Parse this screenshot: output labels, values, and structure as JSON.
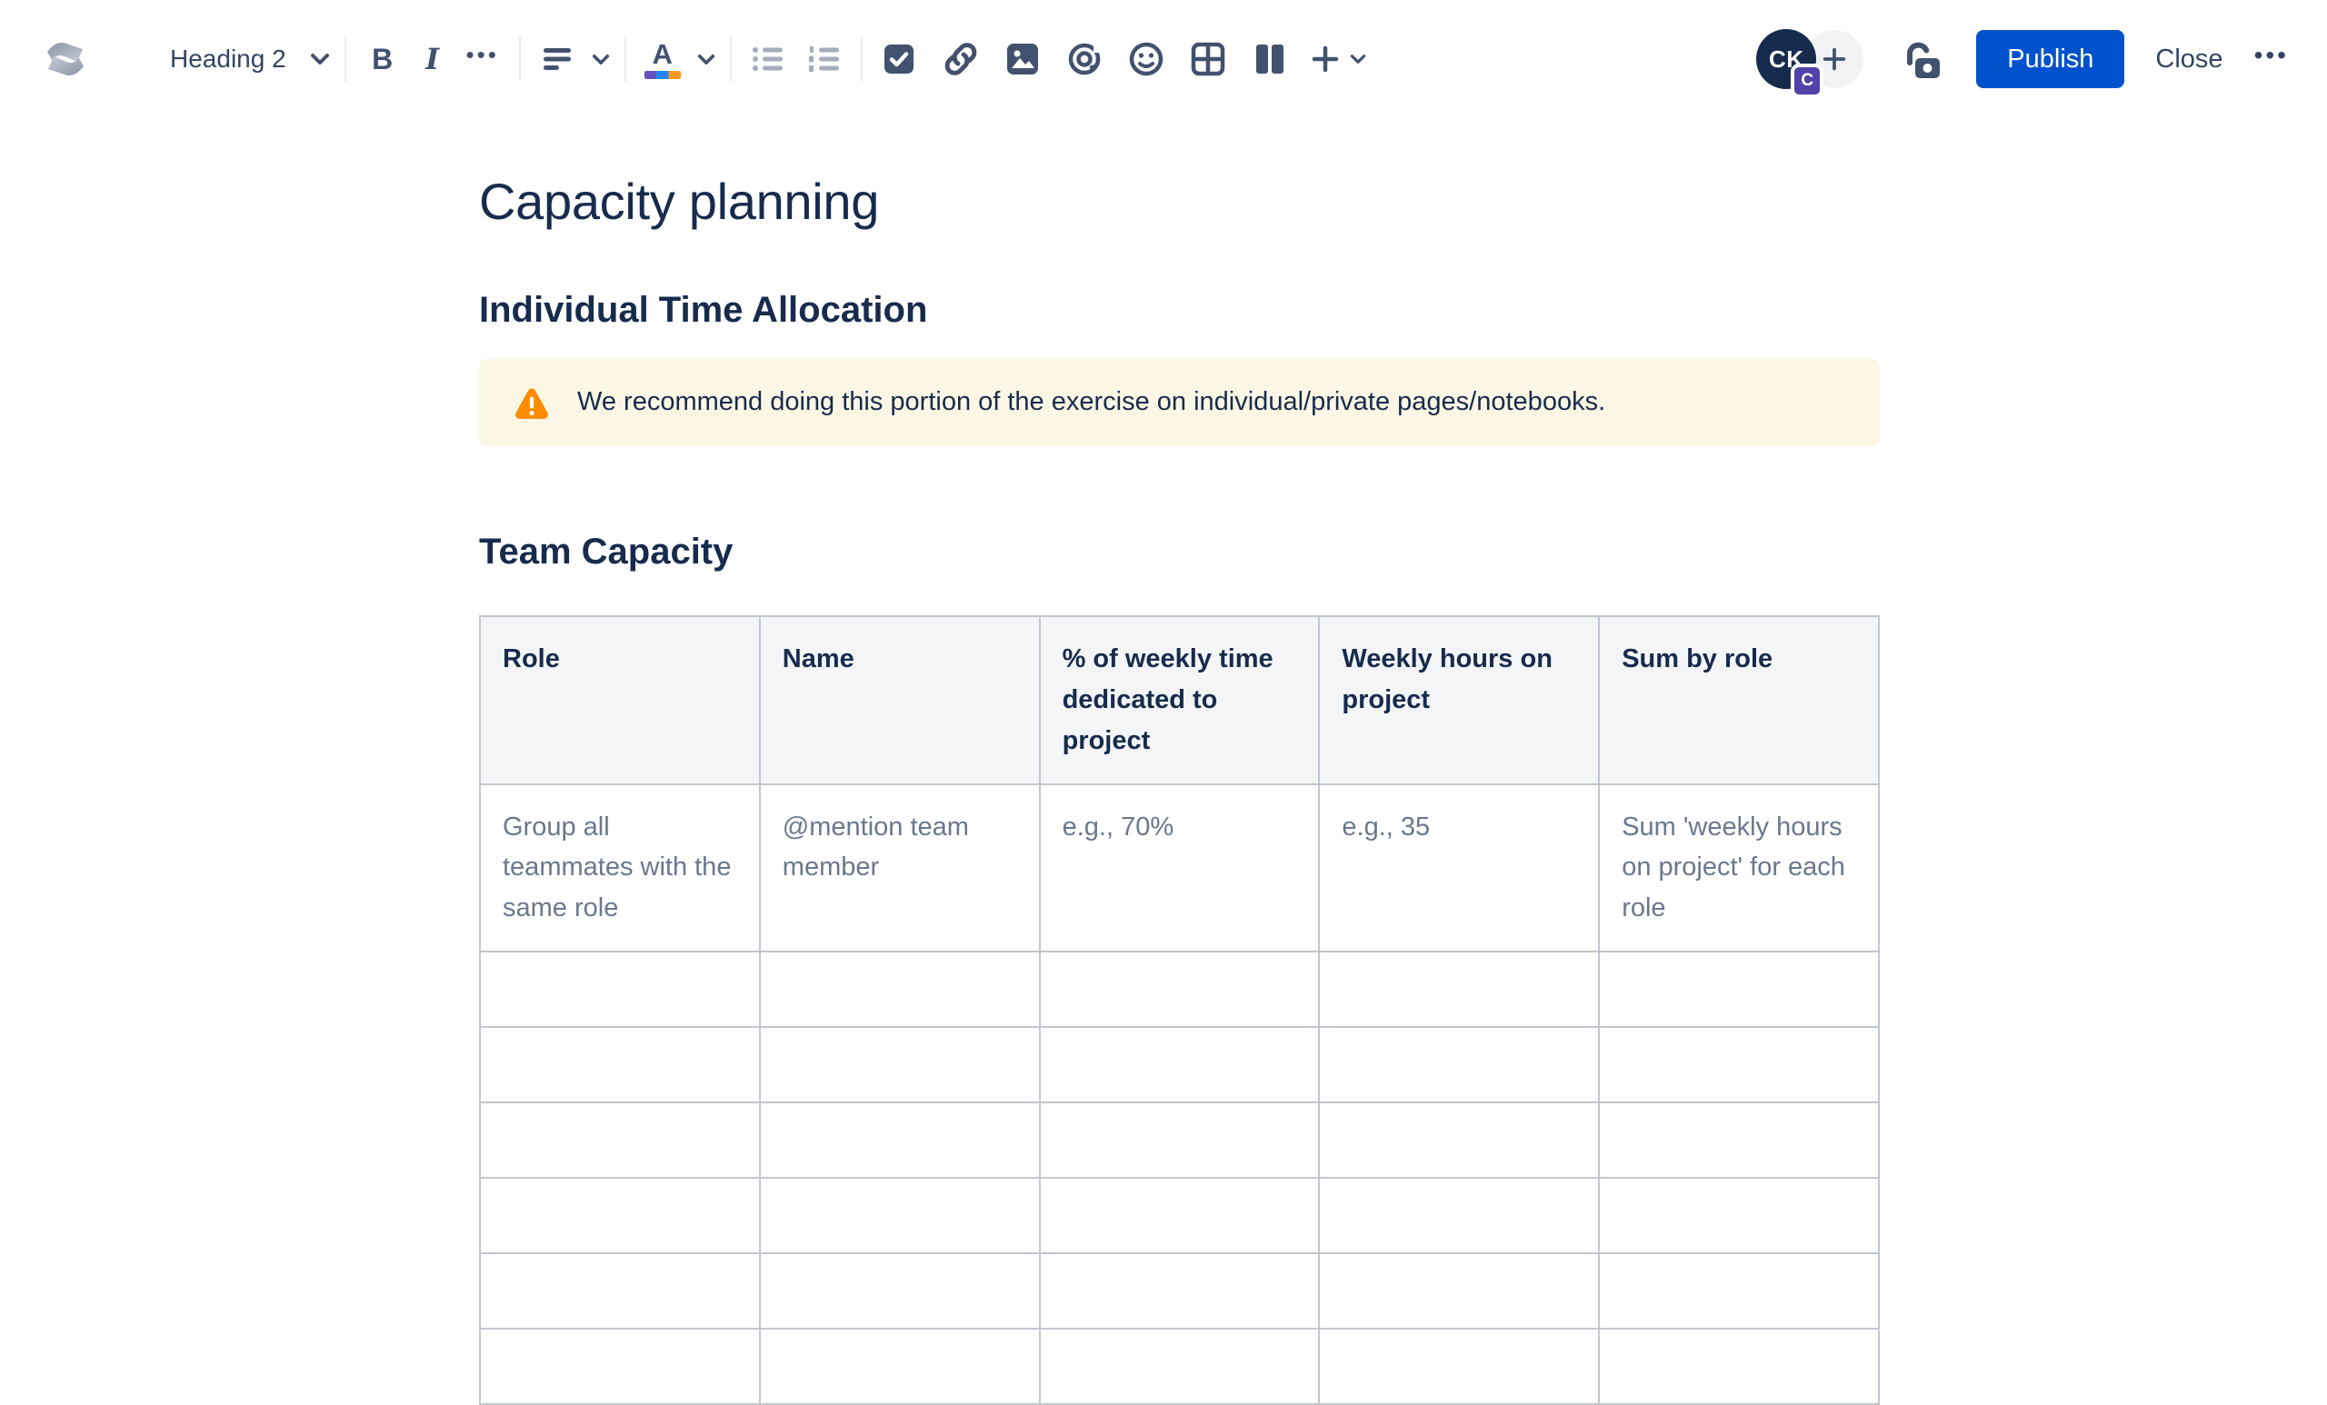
{
  "toolbar": {
    "style_selector": {
      "label": "Heading 2"
    },
    "format": {
      "bold": "B",
      "italic": "I",
      "more": "•••"
    },
    "publish_label": "Publish",
    "close_label": "Close",
    "more_label": "•••",
    "avatar": {
      "initials": "CK",
      "badge": "C"
    }
  },
  "content": {
    "page_title": "Capacity planning",
    "section1_heading": "Individual Time Allocation",
    "warning_text": "We recommend doing this portion of the exercise on individual/private pages/notebooks.",
    "section2_heading": "Team Capacity",
    "table": {
      "headers": [
        "Role",
        "Name",
        "% of weekly time dedicated to project",
        "Weekly hours on project",
        "Sum by role"
      ],
      "hint_row": [
        "Group all teammates with the same role",
        "@mention team member",
        "e.g., 70%",
        "e.g., 35",
        "Sum 'weekly hours on project' for each role"
      ],
      "empty_row_count": 6
    }
  },
  "colors": {
    "accent_blue": "#0052CC",
    "heading_text": "#172B4D",
    "toolbar_icon": "#42526E",
    "disabled_icon": "#A5ADBA",
    "warning_bg": "#FCF7E5",
    "warning_icon": "#FF8B00",
    "table_border": "#C1C7D0",
    "table_header_bg": "#F4F5F7",
    "hint_text": "#6B778C",
    "avatar_bg": "#172B4D",
    "badge_bg": "#5243AA"
  }
}
